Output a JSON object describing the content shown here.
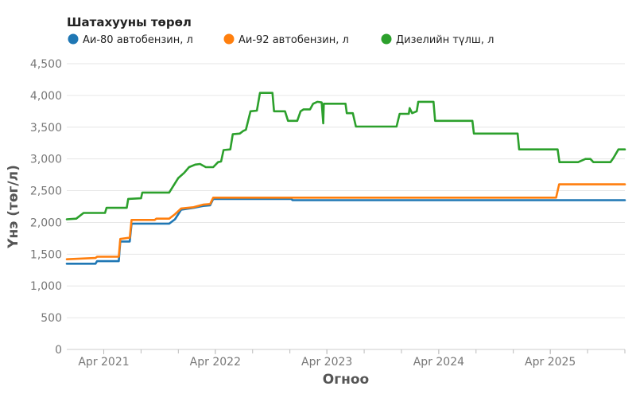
{
  "chart_data": {
    "type": "line",
    "legend_title": "Шатахууны төрөл",
    "legend_position": "top-left",
    "xlabel": "Огноо",
    "ylabel": "Үнэ (төг/л)",
    "ylim": [
      0,
      4500
    ],
    "yticks": [
      0,
      500,
      1000,
      1500,
      2000,
      2500,
      3000,
      3500,
      4000,
      4500
    ],
    "ytick_labels": [
      "0",
      "500",
      "1,000",
      "1,500",
      "2,000",
      "2,500",
      "3,000",
      "3,500",
      "4,000",
      "4,500"
    ],
    "xlim": [
      "2020-12-01",
      "2025-12-01"
    ],
    "xticks": [
      "2021-04-01",
      "2022-04-01",
      "2023-04-01",
      "2024-04-01",
      "2025-04-01"
    ],
    "xtick_labels": [
      "Apr 2021",
      "Apr 2022",
      "Apr 2023",
      "Apr 2024",
      "Apr 2025"
    ],
    "grid": true,
    "series": [
      {
        "name": "Аи-80 автобензин, л",
        "color": "#1f77b4",
        "points": [
          [
            "2020-12-01",
            1350
          ],
          [
            "2021-03-05",
            1350
          ],
          [
            "2021-03-10",
            1390
          ],
          [
            "2021-05-20",
            1390
          ],
          [
            "2021-05-25",
            1700
          ],
          [
            "2021-06-25",
            1700
          ],
          [
            "2021-07-01",
            1980
          ],
          [
            "2021-11-01",
            1980
          ],
          [
            "2021-11-20",
            2050
          ],
          [
            "2021-12-10",
            2200
          ],
          [
            "2022-01-20",
            2230
          ],
          [
            "2022-02-20",
            2260
          ],
          [
            "2022-03-15",
            2270
          ],
          [
            "2022-03-25",
            2370
          ],
          [
            "2022-12-05",
            2370
          ],
          [
            "2022-12-10",
            2350
          ],
          [
            "2025-12-01",
            2350
          ]
        ]
      },
      {
        "name": "Аи-92 автобензин, л",
        "color": "#ff7f0e",
        "points": [
          [
            "2020-12-01",
            1420
          ],
          [
            "2021-03-05",
            1440
          ],
          [
            "2021-03-10",
            1460
          ],
          [
            "2021-05-20",
            1460
          ],
          [
            "2021-05-25",
            1740
          ],
          [
            "2021-06-25",
            1760
          ],
          [
            "2021-07-01",
            2040
          ],
          [
            "2021-09-15",
            2040
          ],
          [
            "2021-09-20",
            2060
          ],
          [
            "2021-11-01",
            2060
          ],
          [
            "2021-11-20",
            2130
          ],
          [
            "2021-12-10",
            2220
          ],
          [
            "2022-01-20",
            2240
          ],
          [
            "2022-02-20",
            2280
          ],
          [
            "2022-03-15",
            2290
          ],
          [
            "2022-03-25",
            2390
          ],
          [
            "2025-04-20",
            2390
          ],
          [
            "2025-04-30",
            2600
          ],
          [
            "2025-12-01",
            2600
          ]
        ]
      },
      {
        "name": "Дизелийн түлш, л",
        "color": "#2ca02c",
        "points": [
          [
            "2020-12-01",
            2050
          ],
          [
            "2021-01-01",
            2060
          ],
          [
            "2021-01-25",
            2150
          ],
          [
            "2021-04-05",
            2150
          ],
          [
            "2021-04-10",
            2230
          ],
          [
            "2021-06-15",
            2230
          ],
          [
            "2021-06-20",
            2370
          ],
          [
            "2021-08-01",
            2380
          ],
          [
            "2021-08-05",
            2470
          ],
          [
            "2021-11-01",
            2470
          ],
          [
            "2021-12-01",
            2700
          ],
          [
            "2021-12-20",
            2780
          ],
          [
            "2022-01-05",
            2870
          ],
          [
            "2022-01-25",
            2910
          ],
          [
            "2022-02-10",
            2920
          ],
          [
            "2022-03-01",
            2870
          ],
          [
            "2022-03-25",
            2870
          ],
          [
            "2022-04-10",
            2950
          ],
          [
            "2022-04-20",
            2960
          ],
          [
            "2022-04-28",
            3140
          ],
          [
            "2022-05-20",
            3150
          ],
          [
            "2022-05-28",
            3390
          ],
          [
            "2022-06-20",
            3400
          ],
          [
            "2022-07-01",
            3440
          ],
          [
            "2022-07-10",
            3460
          ],
          [
            "2022-07-25",
            3750
          ],
          [
            "2022-08-15",
            3760
          ],
          [
            "2022-08-25",
            4040
          ],
          [
            "2022-10-05",
            4040
          ],
          [
            "2022-10-10",
            3750
          ],
          [
            "2022-11-15",
            3750
          ],
          [
            "2022-11-25",
            3600
          ],
          [
            "2022-12-25",
            3600
          ],
          [
            "2023-01-05",
            3750
          ],
          [
            "2023-01-15",
            3780
          ],
          [
            "2023-02-05",
            3780
          ],
          [
            "2023-02-15",
            3870
          ],
          [
            "2023-03-01",
            3900
          ],
          [
            "2023-03-15",
            3890
          ],
          [
            "2023-03-20",
            3560
          ],
          [
            "2023-03-22",
            3870
          ],
          [
            "2023-06-01",
            3870
          ],
          [
            "2023-06-05",
            3720
          ],
          [
            "2023-06-25",
            3720
          ],
          [
            "2023-07-05",
            3510
          ],
          [
            "2023-11-15",
            3510
          ],
          [
            "2023-11-25",
            3710
          ],
          [
            "2023-12-25",
            3710
          ],
          [
            "2023-12-28",
            3800
          ],
          [
            "2024-01-05",
            3720
          ],
          [
            "2024-01-20",
            3750
          ],
          [
            "2024-01-25",
            3900
          ],
          [
            "2024-03-15",
            3900
          ],
          [
            "2024-03-20",
            3600
          ],
          [
            "2024-07-20",
            3600
          ],
          [
            "2024-07-25",
            3400
          ],
          [
            "2024-12-15",
            3400
          ],
          [
            "2024-12-20",
            3150
          ],
          [
            "2025-04-25",
            3150
          ],
          [
            "2025-05-01",
            2950
          ],
          [
            "2025-07-01",
            2950
          ],
          [
            "2025-07-25",
            3000
          ],
          [
            "2025-08-10",
            3000
          ],
          [
            "2025-08-20",
            2950
          ],
          [
            "2025-10-15",
            2950
          ],
          [
            "2025-10-25",
            3020
          ],
          [
            "2025-11-10",
            3150
          ],
          [
            "2025-12-01",
            3150
          ]
        ]
      }
    ]
  }
}
